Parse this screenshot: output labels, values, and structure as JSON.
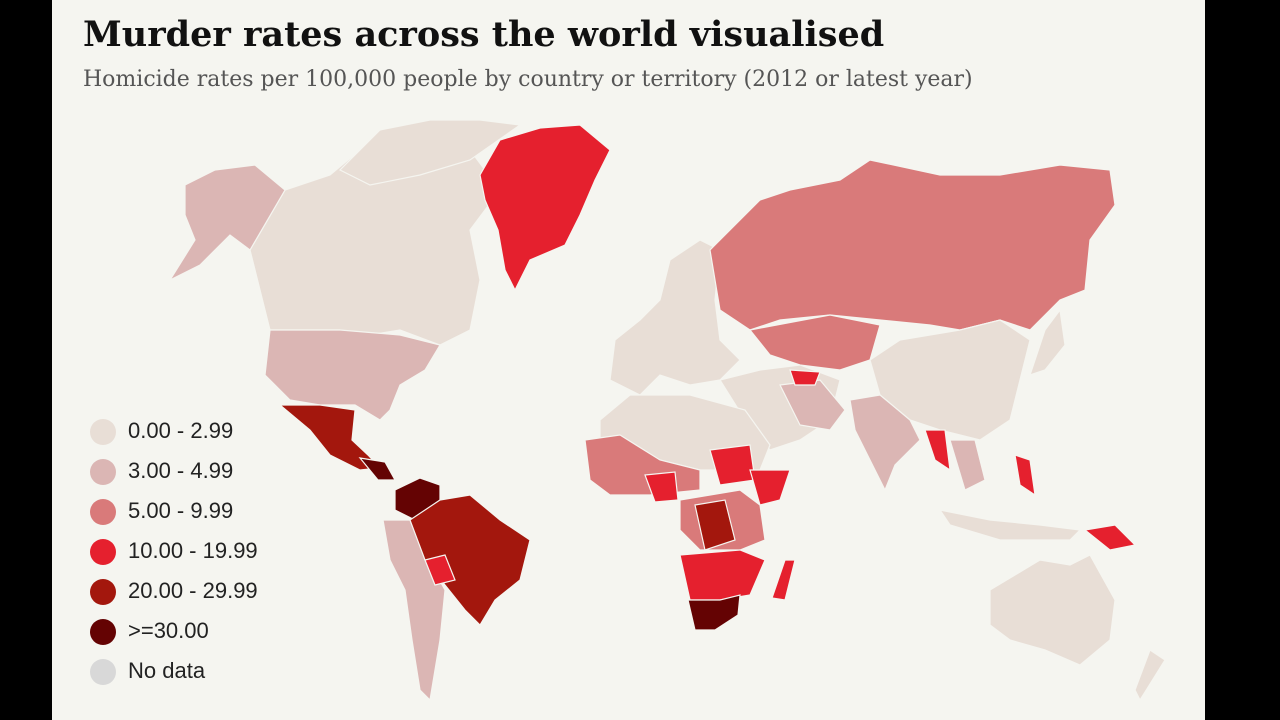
{
  "header": {
    "title": "Murder rates across the world visualised",
    "subtitle": "Homicide rates per 100,000 people by country or territory (2012 or latest year)"
  },
  "legend": {
    "items": [
      {
        "label": "0.00 - 2.99",
        "color": "#e8ded6"
      },
      {
        "label": "3.00 - 4.99",
        "color": "#dbb6b4"
      },
      {
        "label": "5.00 - 9.99",
        "color": "#d97a7a"
      },
      {
        "label": "10.00 - 19.99",
        "color": "#e5202e"
      },
      {
        "label": "20.00 - 29.99",
        "color": "#a3170d"
      },
      {
        "label": ">=30.00",
        "color": "#640303"
      },
      {
        "label": "No data",
        "color": "#d8d8d8"
      }
    ]
  }
}
